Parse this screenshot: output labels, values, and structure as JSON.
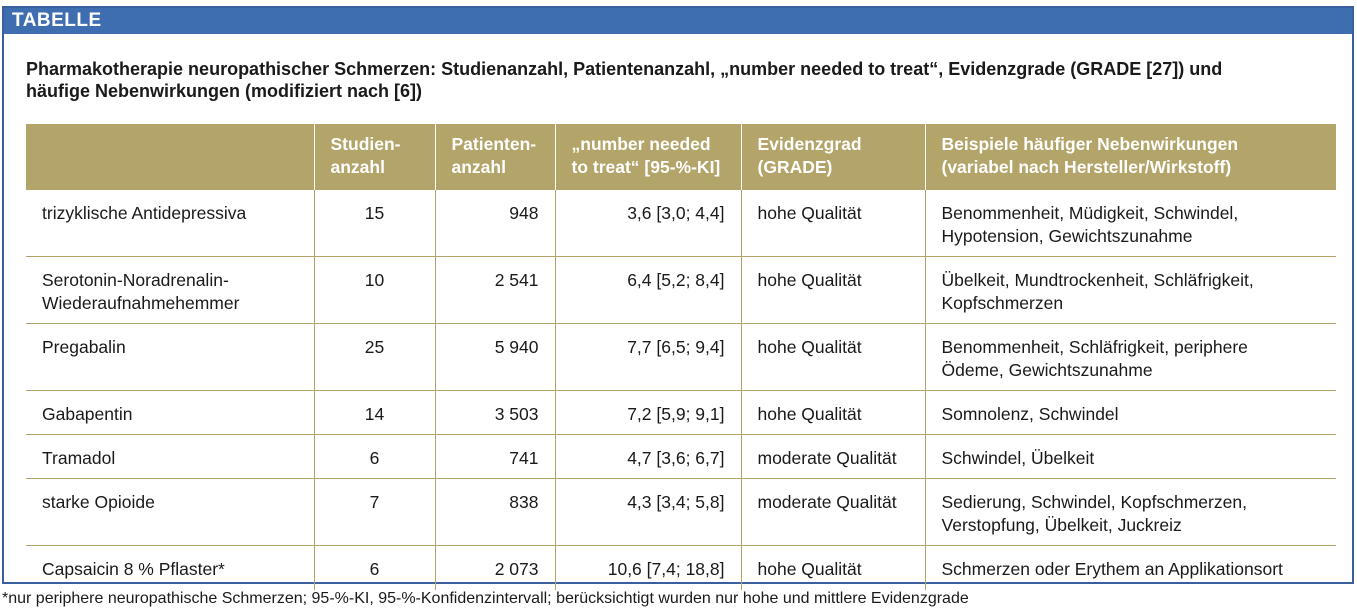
{
  "box_label": "TABELLE",
  "caption_line1": "Pharmakotherapie neuropathischer Schmerzen: Studienanzahl, Patientenanzahl, „number needed to treat“, Evidenzgrade (GRADE [27]) und",
  "caption_line2": "häufige Nebenwirkungen (modifiziert nach [6])",
  "headers": {
    "studies_1": "Studien-",
    "studies_2": "anzahl",
    "patients_1": "Patienten-",
    "patients_2": "anzahl",
    "nnt_1": "„number needed",
    "nnt_2": "to treat“ [95-%-KI]",
    "grade_1": "Evidenzgrad",
    "grade_2": "(GRADE)",
    "side_1": "Beispiele häufiger Nebenwirkungen",
    "side_2": "(variabel nach Hersteller/Wirkstoff)"
  },
  "rows": [
    {
      "drug_1": "trizyklische Antidepressiva",
      "drug_2": "",
      "studies": "15",
      "patients": "948",
      "nnt": "3,6 [3,0; 4,4]",
      "grade": "hohe Qualität",
      "side_1": "Benommenheit, Müdigkeit, Schwindel,",
      "side_2": "Hypotension, Gewichtszunahme"
    },
    {
      "drug_1": "Serotonin-Noradrenalin-",
      "drug_2": "Wiederaufnahmehemmer",
      "studies": "10",
      "patients": "2 541",
      "nnt": "6,4 [5,2; 8,4]",
      "grade": "hohe Qualität",
      "side_1": "Übelkeit, Mundtrockenheit, Schläfrigkeit,",
      "side_2": "Kopfschmerzen"
    },
    {
      "drug_1": "Pregabalin",
      "drug_2": "",
      "studies": "25",
      "patients": "5 940",
      "nnt": "7,7 [6,5; 9,4]",
      "grade": "hohe Qualität",
      "side_1": "Benommenheit, Schläfrigkeit, periphere",
      "side_2": "Ödeme, Gewichtszunahme"
    },
    {
      "drug_1": "Gabapentin",
      "drug_2": "",
      "studies": "14",
      "patients": "3 503",
      "nnt": "7,2 [5,9; 9,1]",
      "grade": "hohe Qualität",
      "side_1": "Somnolenz, Schwindel",
      "side_2": ""
    },
    {
      "drug_1": "Tramadol",
      "drug_2": "",
      "studies": "6",
      "patients": "741",
      "nnt": "4,7 [3,6; 6,7]",
      "grade": "moderate Qualität",
      "side_1": "Schwindel, Übelkeit",
      "side_2": ""
    },
    {
      "drug_1": "starke Opioide",
      "drug_2": "",
      "studies": "7",
      "patients": "838",
      "nnt": "4,3 [3,4; 5,8]",
      "grade": "moderate Qualität",
      "side_1": "Sedierung, Schwindel, Kopfschmerzen,",
      "side_2": "Verstopfung, Übelkeit, Juckreiz"
    },
    {
      "drug_1": "Capsaicin 8 % Pflaster*",
      "drug_2": "",
      "studies": "6",
      "patients": "2 073",
      "nnt": "10,6 [7,4; 18,8]",
      "grade": "hohe Qualität",
      "side_1": "Schmerzen oder Erythem an Applikationsort",
      "side_2": ""
    }
  ],
  "footnote": "*nur periphere neuropathische Schmerzen; 95-%-KI, 95-%-Konfidenzintervall; berücksichtigt wurden nur hohe und mittlere Evidenzgrade",
  "colors": {
    "header_bg": "#b3a46a",
    "label_bar": "#3f6eb0",
    "frame": "#3a5f9f"
  }
}
